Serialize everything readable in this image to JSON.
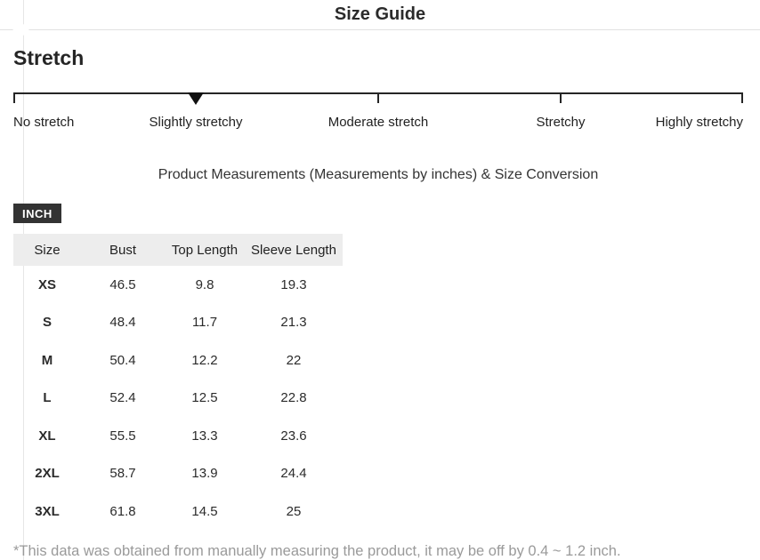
{
  "header": {
    "title": "Size Guide"
  },
  "stretch": {
    "heading": "Stretch",
    "levels": [
      "No stretch",
      "Slightly stretchy",
      "Moderate stretch",
      "Stretchy",
      "Highly stretchy"
    ],
    "selected_index": 1,
    "selected_level": "Slightly stretchy"
  },
  "measurements": {
    "heading": "Product Measurements (Measurements by inches) & Size Conversion",
    "unit_label": "INCH",
    "table": {
      "columns": [
        "Size",
        "Bust",
        "Top Length",
        "Sleeve Length"
      ],
      "rows": [
        [
          "XS",
          "46.5",
          "9.8",
          "19.3"
        ],
        [
          "S",
          "48.4",
          "11.7",
          "21.3"
        ],
        [
          "M",
          "50.4",
          "12.2",
          "22"
        ],
        [
          "L",
          "52.4",
          "12.5",
          "22.8"
        ],
        [
          "XL",
          "55.5",
          "13.3",
          "23.6"
        ],
        [
          "2XL",
          "58.7",
          "13.9",
          "24.4"
        ],
        [
          "3XL",
          "61.8",
          "14.5",
          "25"
        ]
      ]
    },
    "footnote": "*This data was obtained from manually measuring the product, it may be off by 0.4 ~ 1.2 inch."
  },
  "colors": {
    "badge_bg": "#333333",
    "badge_text": "#ffffff",
    "table_header_bg": "#ededed",
    "scale_color": "#252525",
    "footnote_color": "#9a9a9a",
    "divider": "#e2e2e2"
  }
}
